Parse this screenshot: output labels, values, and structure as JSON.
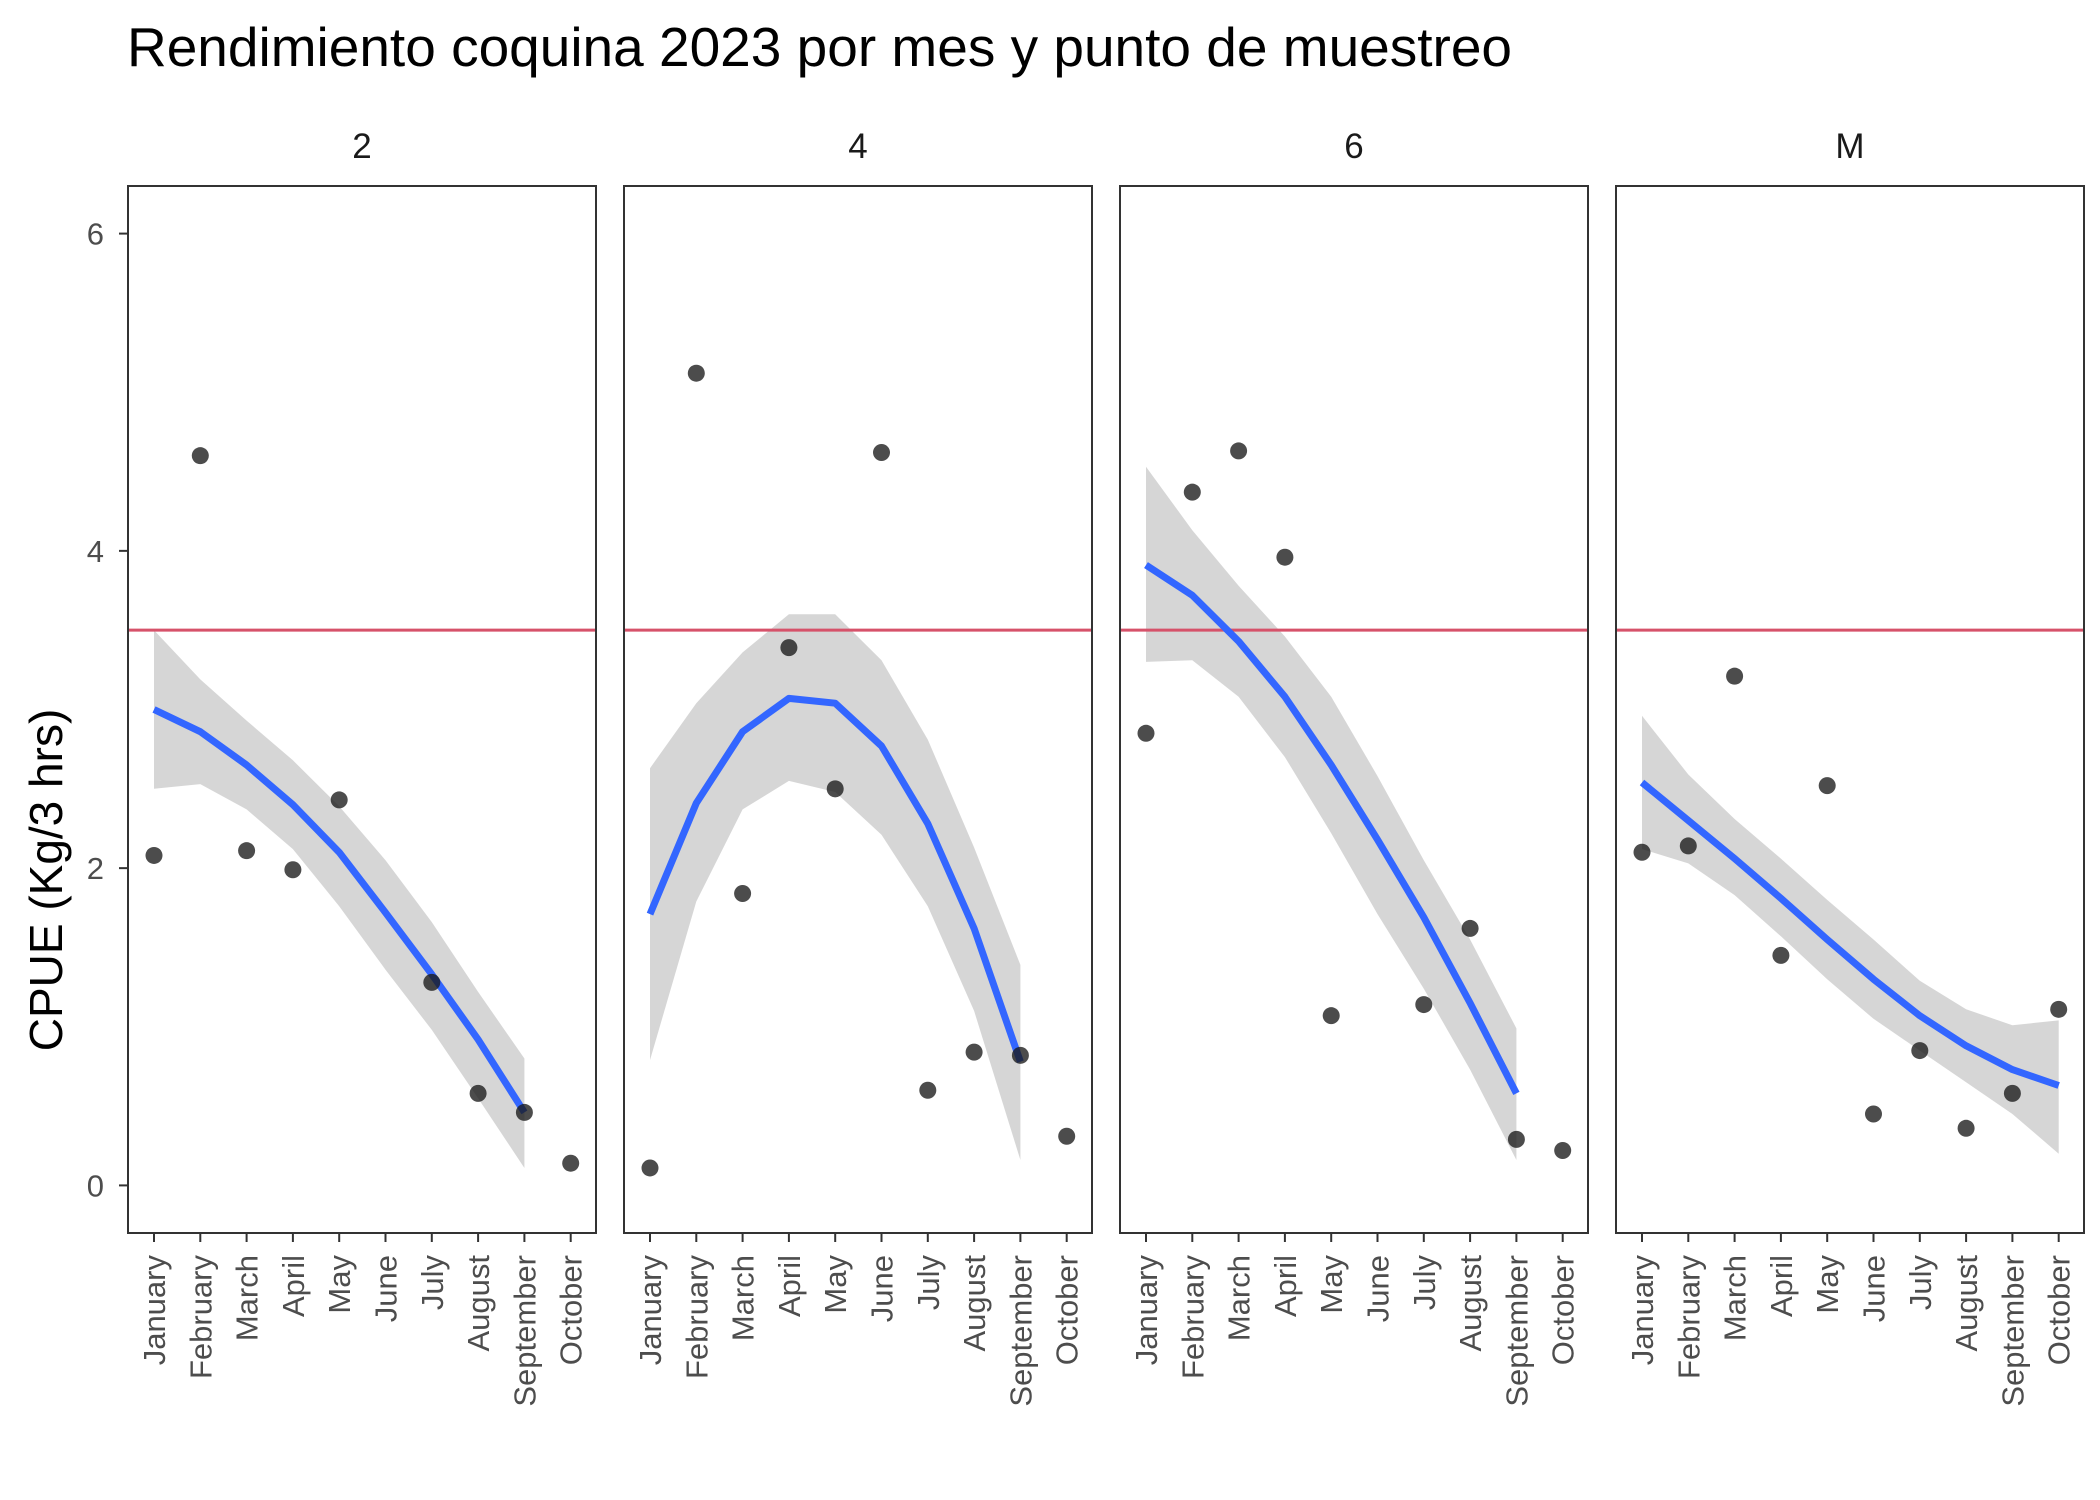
{
  "chart_data": {
    "type": "scatter",
    "title": "Rendimiento coquina 2023 por mes y punto de muestreo",
    "xlabel": "",
    "ylabel": "CPUE (Kg/3 hrs)",
    "categories": [
      "January",
      "February",
      "March",
      "April",
      "May",
      "June",
      "July",
      "August",
      "September",
      "October"
    ],
    "ylim": [
      -0.3,
      6.3
    ],
    "yticks": [
      0,
      2,
      4,
      6
    ],
    "reference_line": {
      "y": 3.5,
      "color": "#d6526a"
    },
    "colors": {
      "points": "#1a1a1a",
      "smooth": "#3366ff",
      "ribbon": "#d4d4d4"
    },
    "grid": false,
    "facets": [
      {
        "label": "2",
        "points": [
          [
            "January",
            2.08
          ],
          [
            "February",
            4.6
          ],
          [
            "March",
            2.11
          ],
          [
            "April",
            1.99
          ],
          [
            "May",
            2.43
          ],
          [
            "July",
            1.28
          ],
          [
            "August",
            0.58
          ],
          [
            "September",
            0.46
          ],
          [
            "October",
            0.14
          ]
        ],
        "smooth": [
          [
            "January",
            3.0
          ],
          [
            "February",
            2.86
          ],
          [
            "March",
            2.65
          ],
          [
            "April",
            2.4
          ],
          [
            "May",
            2.1
          ],
          [
            "June",
            1.72
          ],
          [
            "July",
            1.33
          ],
          [
            "August",
            0.92
          ],
          [
            "September",
            0.46
          ]
        ],
        "ribbon_lower": [
          [
            "January",
            2.5
          ],
          [
            "February",
            2.53
          ],
          [
            "March",
            2.37
          ],
          [
            "April",
            2.12
          ],
          [
            "May",
            1.76
          ],
          [
            "June",
            1.36
          ],
          [
            "July",
            0.98
          ],
          [
            "August",
            0.55
          ],
          [
            "September",
            0.11
          ]
        ],
        "ribbon_upper": [
          [
            "January",
            3.5
          ],
          [
            "February",
            3.19
          ],
          [
            "March",
            2.93
          ],
          [
            "April",
            2.68
          ],
          [
            "May",
            2.39
          ],
          [
            "June",
            2.05
          ],
          [
            "July",
            1.66
          ],
          [
            "August",
            1.22
          ],
          [
            "September",
            0.8
          ]
        ]
      },
      {
        "label": "4",
        "points": [
          [
            "January",
            0.11
          ],
          [
            "February",
            5.12
          ],
          [
            "March",
            1.84
          ],
          [
            "April",
            3.39
          ],
          [
            "May",
            2.5
          ],
          [
            "June",
            4.62
          ],
          [
            "July",
            0.6
          ],
          [
            "August",
            0.84
          ],
          [
            "September",
            0.82
          ],
          [
            "October",
            0.31
          ]
        ],
        "smooth": [
          [
            "January",
            1.71
          ],
          [
            "February",
            2.41
          ],
          [
            "March",
            2.86
          ],
          [
            "April",
            3.07
          ],
          [
            "May",
            3.04
          ],
          [
            "June",
            2.77
          ],
          [
            "July",
            2.28
          ],
          [
            "August",
            1.62
          ],
          [
            "September",
            0.78
          ]
        ],
        "ribbon_lower": [
          [
            "January",
            0.79
          ],
          [
            "February",
            1.79
          ],
          [
            "March",
            2.37
          ],
          [
            "April",
            2.55
          ],
          [
            "May",
            2.48
          ],
          [
            "June",
            2.21
          ],
          [
            "July",
            1.76
          ],
          [
            "August",
            1.1
          ],
          [
            "September",
            0.16
          ]
        ],
        "ribbon_upper": [
          [
            "January",
            2.63
          ],
          [
            "February",
            3.04
          ],
          [
            "March",
            3.36
          ],
          [
            "April",
            3.6
          ],
          [
            "May",
            3.6
          ],
          [
            "June",
            3.31
          ],
          [
            "July",
            2.81
          ],
          [
            "August",
            2.13
          ],
          [
            "September",
            1.39
          ]
        ]
      },
      {
        "label": "6",
        "points": [
          [
            "January",
            2.85
          ],
          [
            "February",
            4.37
          ],
          [
            "March",
            4.63
          ],
          [
            "April",
            3.96
          ],
          [
            "May",
            1.07
          ],
          [
            "July",
            1.14
          ],
          [
            "August",
            1.62
          ],
          [
            "September",
            0.29
          ],
          [
            "October",
            0.22
          ]
        ],
        "smooth": [
          [
            "January",
            3.91
          ],
          [
            "February",
            3.72
          ],
          [
            "March",
            3.43
          ],
          [
            "April",
            3.08
          ],
          [
            "May",
            2.65
          ],
          [
            "June",
            2.18
          ],
          [
            "July",
            1.69
          ],
          [
            "August",
            1.15
          ],
          [
            "September",
            0.58
          ]
        ],
        "ribbon_lower": [
          [
            "January",
            3.3
          ],
          [
            "February",
            3.31
          ],
          [
            "March",
            3.08
          ],
          [
            "April",
            2.7
          ],
          [
            "May",
            2.22
          ],
          [
            "June",
            1.71
          ],
          [
            "July",
            1.24
          ],
          [
            "August",
            0.73
          ],
          [
            "September",
            0.16
          ]
        ],
        "ribbon_upper": [
          [
            "January",
            4.53
          ],
          [
            "February",
            4.13
          ],
          [
            "March",
            3.78
          ],
          [
            "April",
            3.46
          ],
          [
            "May",
            3.08
          ],
          [
            "June",
            2.58
          ],
          [
            "July",
            2.05
          ],
          [
            "August",
            1.55
          ],
          [
            "September",
            0.99
          ]
        ]
      },
      {
        "label": "M",
        "points": [
          [
            "January",
            2.1
          ],
          [
            "February",
            2.14
          ],
          [
            "March",
            3.21
          ],
          [
            "April",
            1.45
          ],
          [
            "May",
            2.52
          ],
          [
            "June",
            0.45
          ],
          [
            "July",
            0.85
          ],
          [
            "August",
            0.36
          ],
          [
            "September",
            0.58
          ],
          [
            "October",
            1.11
          ]
        ],
        "smooth": [
          [
            "January",
            2.54
          ],
          [
            "February",
            2.3
          ],
          [
            "March",
            2.06
          ],
          [
            "April",
            1.81
          ],
          [
            "May",
            1.55
          ],
          [
            "June",
            1.3
          ],
          [
            "July",
            1.07
          ],
          [
            "August",
            0.88
          ],
          [
            "September",
            0.73
          ],
          [
            "October",
            0.63
          ]
        ],
        "ribbon_lower": [
          [
            "January",
            2.12
          ],
          [
            "February",
            2.03
          ],
          [
            "March",
            1.83
          ],
          [
            "April",
            1.57
          ],
          [
            "May",
            1.3
          ],
          [
            "June",
            1.05
          ],
          [
            "July",
            0.85
          ],
          [
            "August",
            0.65
          ],
          [
            "September",
            0.45
          ],
          [
            "October",
            0.2
          ]
        ],
        "ribbon_upper": [
          [
            "January",
            2.96
          ],
          [
            "February",
            2.59
          ],
          [
            "March",
            2.31
          ],
          [
            "April",
            2.06
          ],
          [
            "May",
            1.8
          ],
          [
            "June",
            1.55
          ],
          [
            "July",
            1.29
          ],
          [
            "August",
            1.11
          ],
          [
            "September",
            1.01
          ],
          [
            "October",
            1.04
          ]
        ]
      }
    ]
  }
}
